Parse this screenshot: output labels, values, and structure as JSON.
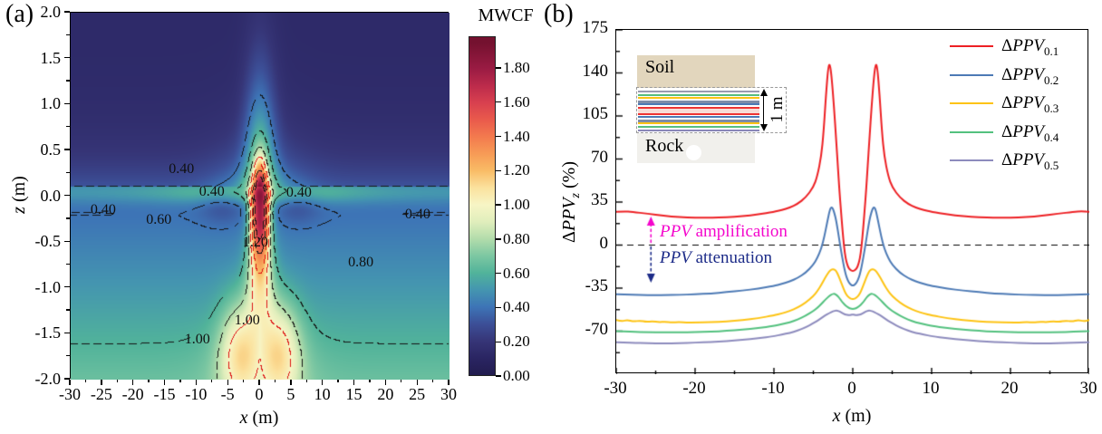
{
  "figure": {
    "panel_a_tag": "(a)",
    "panel_b_tag": "(b)"
  },
  "panel_a": {
    "xlabel": {
      "var": "x",
      "unit": " (m)"
    },
    "ylabel": {
      "var": "z",
      "unit": " (m)"
    },
    "x_tick_labels": [
      "-30",
      "-25",
      "-20",
      "-15",
      "-10",
      "-5",
      "0",
      "5",
      "10",
      "15",
      "20",
      "25",
      "30"
    ],
    "z_tick_labels": [
      "2.0",
      "1.5",
      "1.0",
      "0.5",
      "0.0",
      "-0.5",
      "-1.0",
      "-1.5",
      "-2.0"
    ],
    "colorbar": {
      "title": "MWCF",
      "tick_labels": [
        "1.80",
        "1.60",
        "1.40",
        "1.20",
        "1.00",
        "0.80",
        "0.60",
        "0.40",
        "0.20",
        "0.00"
      ],
      "vmax_display": 1.985,
      "stops": [
        [
          0.0,
          "#221c4f"
        ],
        [
          0.1,
          "#2a2562"
        ],
        [
          0.2,
          "#363577"
        ],
        [
          0.3,
          "#3c4f97"
        ],
        [
          0.4,
          "#3d74b6"
        ],
        [
          0.5,
          "#4495b0"
        ],
        [
          0.6,
          "#51b39a"
        ],
        [
          0.7,
          "#7cc7a2"
        ],
        [
          0.8,
          "#b2dcab"
        ],
        [
          0.9,
          "#e0eebc"
        ],
        [
          1.0,
          "#f7f5c5"
        ],
        [
          1.1,
          "#fbe29e"
        ],
        [
          1.2,
          "#f9bc66"
        ],
        [
          1.3,
          "#f79b56"
        ],
        [
          1.4,
          "#f37a4e"
        ],
        [
          1.5,
          "#e95a4c"
        ],
        [
          1.6,
          "#d8404f"
        ],
        [
          1.7,
          "#bc2b4b"
        ],
        [
          1.8,
          "#9a1b43"
        ],
        [
          1.95,
          "#74112f"
        ]
      ]
    }
  },
  "panel_b": {
    "xlabel": {
      "var": "x",
      "unit": " (m)"
    },
    "ylabel": {
      "delta": "Δ",
      "ppv": "PPV",
      "sub": "z",
      "unit": " (%)"
    },
    "x_tick_labels": [
      "-30",
      "-20",
      "-10",
      "0",
      "10",
      "20",
      "30"
    ],
    "y_tick_labels": [
      "175",
      "140",
      "105",
      "70",
      "35",
      "0",
      "-35",
      "-70"
    ],
    "zero_line": {
      "value": 0,
      "style": "dashed",
      "color": "#000000"
    },
    "annotations": {
      "amplification": {
        "ppv": "PPV",
        "text": " amplification",
        "color": "#f406cc",
        "arrow_x_m": -25.6
      },
      "attenuation": {
        "ppv": "PPV",
        "text": " attenuation",
        "color": "#1c2b88",
        "arrow_x_m": -25.6
      }
    },
    "inset": {
      "soil_label": "Soil",
      "rock_label": "Rock",
      "dim_label": "1 m",
      "soil_color": "#e2d6bd",
      "rock_color": "#f1f0ec",
      "mid_band_color": "#f7dcd6",
      "layer_colors": [
        "#9a9ab0",
        "#57bd7e",
        "#fdc313",
        "#7e8ca8",
        "#4d7ab5",
        "#ee3333",
        "#ee3333",
        "#4d7ab5",
        "#7e8ca8",
        "#fdc313",
        "#57bd7e",
        "#8a87b8"
      ],
      "layer_thickness": [
        2,
        2,
        2,
        3,
        2,
        2,
        2,
        2,
        3,
        2,
        2,
        2
      ]
    }
  },
  "chart_data": [
    {
      "type": "heatmap",
      "title": "",
      "xlabel": "x (m)",
      "ylabel": "z (m)",
      "xlim": [
        -30,
        30
      ],
      "zlim": [
        -2.0,
        2.0
      ],
      "colorbar_label": "MWCF",
      "colorbar_range": [
        0.0,
        1.985
      ],
      "colorbar_ticks": [
        0.0,
        0.2,
        0.4,
        0.6,
        0.8,
        1.0,
        1.2,
        1.4,
        1.6,
        1.8
      ],
      "contour_levels": {
        "black": [
          0.4,
          0.6,
          0.8,
          1.4,
          1.6
        ],
        "red": [
          1.0,
          1.2
        ]
      },
      "contour_line_colors": {
        "black": "#151515",
        "red": "#dd1111"
      },
      "contour_labels": [
        {
          "text": "0.40",
          "x_m": -12.3,
          "z_m": 0.28
        },
        {
          "text": "0.40",
          "x_m": -24.7,
          "z_m": -0.16
        },
        {
          "text": "0.40",
          "x_m": -7.5,
          "z_m": 0.03
        },
        {
          "text": "0.40",
          "x_m": 6.3,
          "z_m": 0.02
        },
        {
          "text": "0.40",
          "x_m": 25.1,
          "z_m": -0.21
        },
        {
          "text": "0.60",
          "x_m": -15.9,
          "z_m": -0.27
        },
        {
          "text": "0.80",
          "x_m": 16.1,
          "z_m": -0.74
        },
        {
          "text": "1.20",
          "x_m": -0.6,
          "z_m": -0.52
        },
        {
          "text": "1.00",
          "x_m": -1.9,
          "z_m": -1.37
        },
        {
          "text": "1.00",
          "x_m": -9.8,
          "z_m": -1.58
        }
      ],
      "field_model": {
        "surface_z": 0.1,
        "above": {
          "base": 0.13,
          "glow": [
            0.42,
            0.38,
            0.45,
            0.55,
            49
          ],
          "plume": [
            0.45,
            6.2,
            1.6
          ],
          "spike": [
            1.1,
            1.2,
            -0.05,
            0.16
          ]
        },
        "below": {
          "bg": [
            0.36,
            0.3,
            1.1,
            2.1
          ],
          "band": [
            0.3,
            0.05,
            0.018,
            0.45,
            0.55,
            225
          ],
          "column": [
            1.3,
            1.55,
            2.3,
            0.25,
            0.55
          ],
          "mid": [
            0.45,
            4.84,
            1.05,
            0.6
          ],
          "twin": [
            0.38,
            3.2,
            3.2,
            1.75,
            0.55
          ],
          "deep": [
            0.18,
            49,
            2.0,
            0.5
          ],
          "dip": [
            0.1,
            6,
            3.5,
            0.18,
            0.22
          ]
        },
        "clamp": [
          0,
          1.95
        ]
      }
    },
    {
      "type": "line",
      "xlabel": "x (m)",
      "ylabel": "ΔPPVz (%)",
      "xlim": [
        -30,
        30
      ],
      "ylim": [
        -105,
        175
      ],
      "legend_position": "top-right",
      "series": [
        {
          "label_base": "ΔPPV",
          "label_sub": "0.1",
          "color": "#ed2024",
          "mirror_about_x0": true,
          "points": [
            [
              -30,
              27
            ],
            [
              -29,
              27.5
            ],
            [
              -28,
              27
            ],
            [
              -26,
              25.5
            ],
            [
              -24,
              23.8
            ],
            [
              -22,
              22.8
            ],
            [
              -20,
              22.3
            ],
            [
              -18,
              22.2
            ],
            [
              -16,
              22.6
            ],
            [
              -14,
              23.4
            ],
            [
              -12,
              24.8
            ],
            [
              -10,
              27
            ],
            [
              -9,
              28.5
            ],
            [
              -8,
              30.5
            ],
            [
              -7,
              33.5
            ],
            [
              -6,
              38.5
            ],
            [
              -5,
              47
            ],
            [
              -4.5,
              56
            ],
            [
              -4,
              72
            ],
            [
              -3.7,
              92
            ],
            [
              -3.4,
              122
            ],
            [
              -3.1,
              146
            ],
            [
              -2.9,
              147
            ],
            [
              -2.7,
              138
            ],
            [
              -2.4,
              114
            ],
            [
              -2.1,
              85
            ],
            [
              -1.9,
              65
            ],
            [
              -1.7,
              45
            ],
            [
              -1.5,
              28
            ],
            [
              -1.3,
              12
            ],
            [
              -1.1,
              -2
            ],
            [
              -0.9,
              -11
            ],
            [
              -0.7,
              -16
            ],
            [
              -0.5,
              -19
            ],
            [
              -0.2,
              -20.8
            ],
            [
              0,
              -21
            ]
          ]
        },
        {
          "label_base": "ΔPPV",
          "label_sub": "0.2",
          "color": "#4d7ab5",
          "mirror_about_x0": true,
          "points": [
            [
              -30,
              -40
            ],
            [
              -28,
              -40.3
            ],
            [
              -26,
              -40.6
            ],
            [
              -24,
              -40.7
            ],
            [
              -22,
              -40.5
            ],
            [
              -20,
              -40
            ],
            [
              -18,
              -39.3
            ],
            [
              -16,
              -38.3
            ],
            [
              -14,
              -37
            ],
            [
              -12,
              -35.4
            ],
            [
              -10,
              -33.2
            ],
            [
              -9,
              -31.6
            ],
            [
              -8,
              -29.6
            ],
            [
              -7,
              -26.8
            ],
            [
              -6,
              -22.6
            ],
            [
              -5,
              -16
            ],
            [
              -4.5,
              -10.5
            ],
            [
              -4,
              -3
            ],
            [
              -3.6,
              7
            ],
            [
              -3.2,
              20
            ],
            [
              -2.9,
              29
            ],
            [
              -2.7,
              31
            ],
            [
              -2.5,
              29.5
            ],
            [
              -2.2,
              23
            ],
            [
              -2,
              16
            ],
            [
              -1.8,
              8
            ],
            [
              -1.5,
              -4
            ],
            [
              -1.2,
              -15
            ],
            [
              -1,
              -21
            ],
            [
              -0.8,
              -26
            ],
            [
              -0.5,
              -30.5
            ],
            [
              -0.2,
              -32.5
            ],
            [
              0,
              -33
            ]
          ]
        },
        {
          "label_base": "ΔPPV",
          "label_sub": "0.3",
          "color": "#fdc313",
          "mirror_about_x0": true,
          "points": [
            [
              -30,
              -61
            ],
            [
              -29.3,
              -62
            ],
            [
              -28.6,
              -60.9
            ],
            [
              -27.8,
              -62.2
            ],
            [
              -27,
              -61.4
            ],
            [
              -26.2,
              -62.5
            ],
            [
              -25.4,
              -61.9
            ],
            [
              -24.6,
              -62.7
            ],
            [
              -23.8,
              -62.3
            ],
            [
              -23,
              -62.9
            ],
            [
              -22,
              -62.6
            ],
            [
              -21,
              -63
            ],
            [
              -20,
              -62.9
            ],
            [
              -18,
              -62.7
            ],
            [
              -16,
              -62.1
            ],
            [
              -14,
              -61
            ],
            [
              -12,
              -59.4
            ],
            [
              -10,
              -57.2
            ],
            [
              -9,
              -55.6
            ],
            [
              -8,
              -53.6
            ],
            [
              -7,
              -50.8
            ],
            [
              -6,
              -47
            ],
            [
              -5,
              -41.5
            ],
            [
              -4.5,
              -37.5
            ],
            [
              -4,
              -32.5
            ],
            [
              -3.5,
              -26.5
            ],
            [
              -3,
              -21.5
            ],
            [
              -2.7,
              -19.8
            ],
            [
              -2.4,
              -19.5
            ],
            [
              -2.1,
              -21
            ],
            [
              -1.8,
              -25
            ],
            [
              -1.5,
              -30
            ],
            [
              -1.2,
              -35
            ],
            [
              -0.9,
              -39.5
            ],
            [
              -0.6,
              -42
            ],
            [
              -0.3,
              -43.5
            ],
            [
              0,
              -44
            ]
          ]
        },
        {
          "label_base": "ΔPPV",
          "label_sub": "0.4",
          "color": "#53c17e",
          "mirror_about_x0": true,
          "points": [
            [
              -30,
              -70
            ],
            [
              -28,
              -70.5
            ],
            [
              -26,
              -70.8
            ],
            [
              -24,
              -71
            ],
            [
              -22,
              -71
            ],
            [
              -20,
              -70.8
            ],
            [
              -18,
              -70.4
            ],
            [
              -16,
              -69.8
            ],
            [
              -14,
              -68.8
            ],
            [
              -12,
              -67.6
            ],
            [
              -10,
              -65.8
            ],
            [
              -9,
              -64.4
            ],
            [
              -8,
              -62.8
            ],
            [
              -7,
              -60.6
            ],
            [
              -6,
              -57.6
            ],
            [
              -5,
              -53.6
            ],
            [
              -4.5,
              -51
            ],
            [
              -4,
              -48
            ],
            [
              -3.5,
              -44.5
            ],
            [
              -3,
              -41.5
            ],
            [
              -2.6,
              -39.8
            ],
            [
              -2.3,
              -39.6
            ],
            [
              -2,
              -40.8
            ],
            [
              -1.7,
              -43
            ],
            [
              -1.4,
              -45.8
            ],
            [
              -1,
              -48.8
            ],
            [
              -0.6,
              -50.8
            ],
            [
              -0.3,
              -51.6
            ],
            [
              0,
              -52
            ]
          ]
        },
        {
          "label_base": "ΔPPV",
          "label_sub": "0.5",
          "color": "#8d8bbd",
          "mirror_about_x0": true,
          "points": [
            [
              -30,
              -79
            ],
            [
              -28,
              -79.5
            ],
            [
              -26,
              -79.8
            ],
            [
              -24,
              -80
            ],
            [
              -22,
              -79.8
            ],
            [
              -20,
              -79.4
            ],
            [
              -18,
              -78.8
            ],
            [
              -16,
              -78
            ],
            [
              -14,
              -77
            ],
            [
              -12,
              -75.8
            ],
            [
              -10,
              -74
            ],
            [
              -9,
              -72.8
            ],
            [
              -8,
              -71.4
            ],
            [
              -7,
              -69.6
            ],
            [
              -6,
              -67
            ],
            [
              -5,
              -63.6
            ],
            [
              -4.5,
              -61.6
            ],
            [
              -4,
              -59.4
            ],
            [
              -3.5,
              -57.2
            ],
            [
              -3,
              -55.4
            ],
            [
              -2.5,
              -53.8
            ],
            [
              -2.1,
              -53.2
            ],
            [
              -1.8,
              -53.6
            ],
            [
              -1.5,
              -54.6
            ],
            [
              -1.2,
              -55.8
            ],
            [
              -0.9,
              -56.6
            ],
            [
              -0.5,
              -57
            ],
            [
              -0.2,
              -56.7
            ],
            [
              0,
              -56.4
            ]
          ]
        }
      ]
    }
  ]
}
